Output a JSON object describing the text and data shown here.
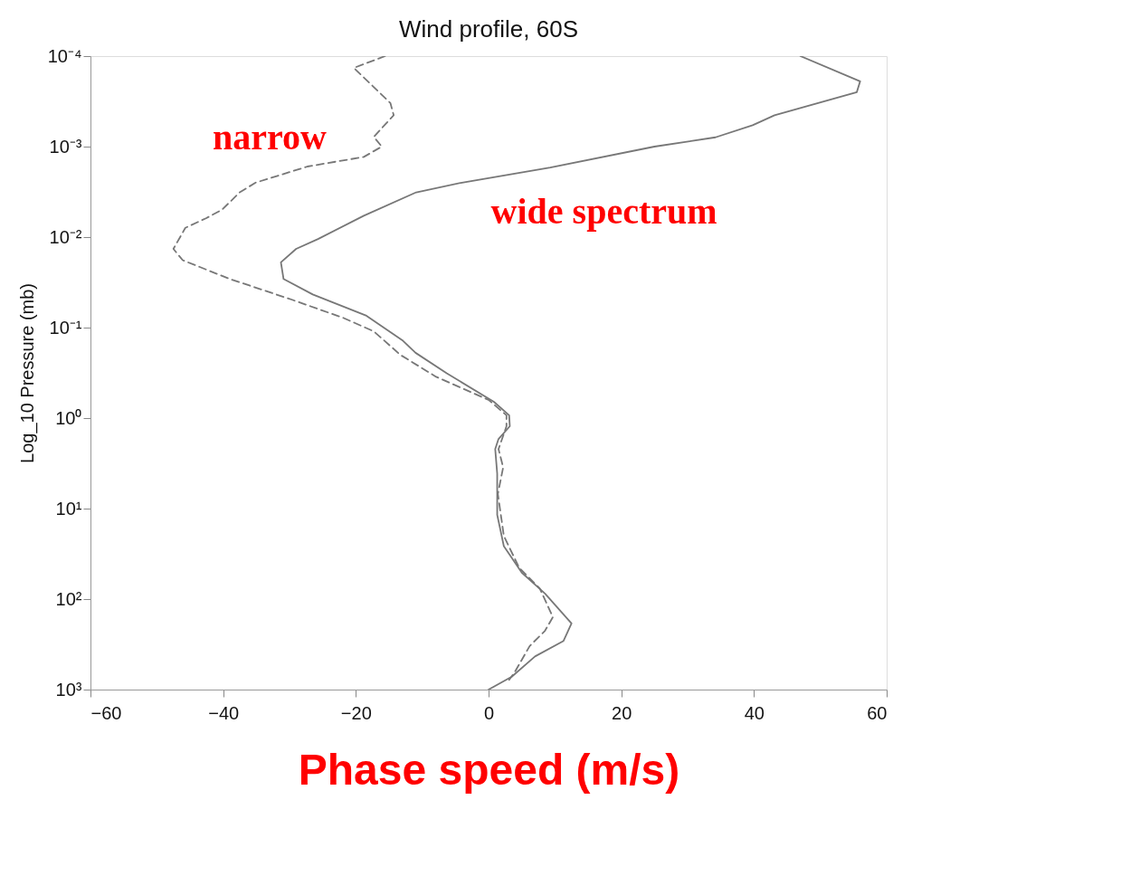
{
  "chart_data": {
    "type": "line",
    "title": "Wind profile, 60S",
    "xlabel": "Phase speed (m/s)",
    "ylabel": "Log_10 Pressure (mb)",
    "xlim": [
      -60,
      60
    ],
    "xticks": [
      -60,
      -40,
      -20,
      0,
      20,
      40,
      60
    ],
    "ylim": [
      1000,
      0.0001
    ],
    "log": "y",
    "yticks": [
      {
        "value": 0.0001,
        "label": "10⁻⁴"
      },
      {
        "value": 0.001,
        "label": "10⁻³"
      },
      {
        "value": 0.01,
        "label": "10⁻²"
      },
      {
        "value": 0.1,
        "label": "10⁻¹"
      },
      {
        "value": 1,
        "label": "10⁰"
      },
      {
        "value": 10,
        "label": "10¹"
      },
      {
        "value": 100,
        "label": "10²"
      },
      {
        "value": 1000,
        "label": "10³"
      }
    ],
    "grid": false,
    "marker": "none",
    "series": [
      {
        "color": "#777777",
        "line_style": "solid",
        "x": [
          47.0,
          56.0,
          55.5,
          43.1,
          39.8,
          34.2,
          25.0,
          9.3,
          -4.0,
          -10.9,
          -18.8,
          -25.7,
          -29.0,
          -31.3,
          -30.9,
          -26.5,
          -18.4,
          -12.9,
          -11.0,
          -6.3,
          0.8,
          3.1,
          3.2,
          1.5,
          1.0,
          1.3,
          1.3,
          2.3,
          5.0,
          8.5,
          12.5,
          11.3,
          7.0,
          3.5,
          0.0
        ],
        "values": [
          0.0001,
          0.00019,
          0.00025,
          0.00045,
          0.00058,
          0.00079,
          0.001,
          0.0017,
          0.0025,
          0.0032,
          0.0058,
          0.0105,
          0.0135,
          0.019,
          0.029,
          0.043,
          0.074,
          0.14,
          0.19,
          0.32,
          0.66,
          0.93,
          1.23,
          1.7,
          2.2,
          4.1,
          11.7,
          26,
          51,
          87,
          186,
          290,
          430,
          720,
          1000
        ]
      },
      {
        "color": "#777777",
        "line_style": "dashed",
        "x": [
          -15.6,
          -20.3,
          -14.8,
          -14.3,
          -17.3,
          -16.1,
          -18.8,
          -27.3,
          -35.1,
          -37.5,
          -40.2,
          -42.6,
          -45.7,
          -47.5,
          -46.1,
          -39.0,
          -29.7,
          -21.9,
          -17.3,
          -13.3,
          -7.9,
          0.0,
          2.7,
          2.7,
          1.5,
          2.2,
          1.4,
          2.3,
          4.6,
          7.7,
          9.7,
          8.5,
          6.2,
          3.9,
          3.1
        ],
        "values": [
          0.0001,
          0.000135,
          0.00033,
          0.00045,
          0.00078,
          0.001,
          0.0013,
          0.00166,
          0.0025,
          0.0032,
          0.005,
          0.0062,
          0.0079,
          0.0135,
          0.018,
          0.029,
          0.049,
          0.078,
          0.11,
          0.2,
          0.35,
          0.63,
          0.93,
          1.23,
          2.2,
          3.5,
          6.9,
          20,
          45,
          76,
          158,
          224,
          330,
          650,
          780
        ]
      }
    ],
    "annotations": [
      "narrow",
      "wide spectrum"
    ]
  }
}
